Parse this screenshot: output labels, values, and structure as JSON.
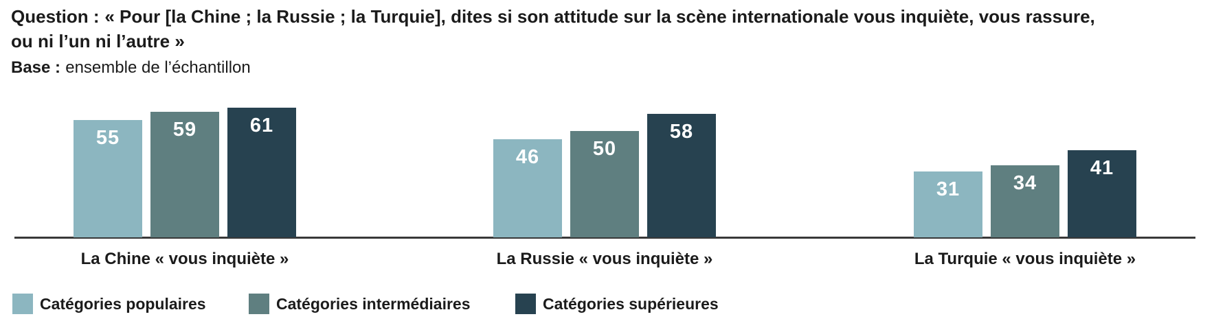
{
  "header": {
    "question_label": "Question :",
    "question_line1": "« Pour [la Chine ; la Russie ; la Turquie], dites si son attitude sur la scène internationale vous inquiète, vous rassure,",
    "question_line2": "ou ni l’un ni l’autre »",
    "base_label": "Base :",
    "base_text": "ensemble de l’échantillon"
  },
  "chart_data": {
    "type": "bar",
    "categories": [
      "La Chine « vous inquiète »",
      "La Russie « vous inquiète »",
      "La Turquie « vous inquiète »"
    ],
    "series": [
      {
        "name": "Catégories populaires",
        "color": "#8cb6c0",
        "values": [
          55,
          46,
          31
        ]
      },
      {
        "name": "Catégories intermédiaires",
        "color": "#5f7f80",
        "values": [
          59,
          50,
          34
        ]
      },
      {
        "name": "Catégories supérieures",
        "color": "#274250",
        "values": [
          61,
          58,
          41
        ]
      }
    ],
    "value_labels": "inside-top",
    "value_label_color": "#ffffff",
    "axis_color": "#383838",
    "text_color": "#1b1b1b",
    "ylim": [
      0,
      70
    ],
    "grid": false,
    "legend_position": "bottom",
    "title": "",
    "xlabel": "",
    "ylabel": ""
  }
}
